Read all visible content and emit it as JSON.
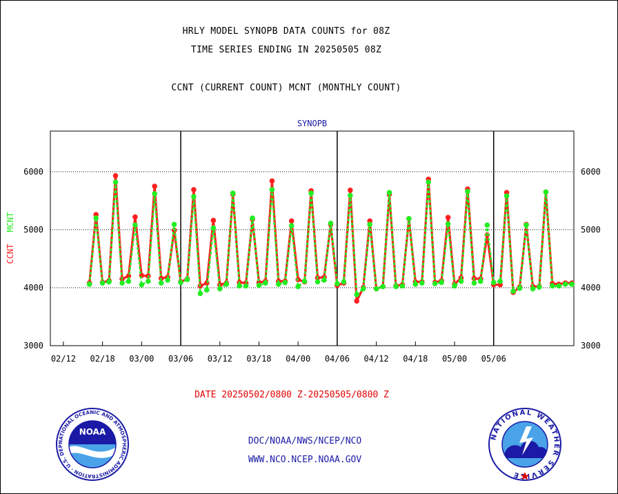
{
  "header": {
    "title_line1": "HRLY MODEL SYNOPB DATA COUNTS for 08Z",
    "title_line2": "TIME SERIES ENDING IN 20250505 08Z",
    "subtitle": "CCNT (CURRENT COUNT) MCNT (MONTHLY COUNT)"
  },
  "chart_data": {
    "type": "line",
    "title": "SYNOPB",
    "ylabel_ccnt": "CCNT",
    "ylabel_mcnt": "MCNT",
    "ylim": [
      3000,
      6700
    ],
    "yticks": [
      "3000",
      "4000",
      "5000",
      "6000"
    ],
    "xtick_labels": [
      "02/12",
      "02/18",
      "03/00",
      "03/06",
      "03/12",
      "03/18",
      "04/00",
      "04/06",
      "04/12",
      "04/18",
      "05/00",
      "05/06"
    ],
    "day_boundaries": [
      "03/00",
      "04/00",
      "05/00"
    ],
    "colors": {
      "ccnt": "#ff1f1f",
      "mcnt": "#22ee22",
      "axis": "#000000",
      "title": "#1a1aa6"
    },
    "x_hours": [
      6,
      7,
      8,
      9,
      10,
      11,
      12,
      13,
      14,
      15,
      16,
      17,
      18,
      19,
      20,
      21,
      22,
      23,
      24,
      25,
      26,
      27,
      28,
      29,
      30,
      31,
      32,
      33,
      34,
      35,
      36,
      37,
      38,
      39,
      40,
      41,
      42,
      43,
      44,
      45,
      46,
      47,
      48,
      49,
      50,
      51,
      52,
      53,
      54,
      55,
      56,
      57,
      58,
      59,
      60,
      61,
      62,
      63,
      64,
      65,
      66,
      67,
      68,
      69,
      70,
      71,
      72,
      73,
      74,
      75,
      76,
      77,
      78,
      79,
      80
    ],
    "series": [
      {
        "name": "CCNT",
        "values": [
          4080,
          5260,
          4090,
          4120,
          5930,
          4150,
          4200,
          5220,
          4210,
          4200,
          5750,
          4160,
          4180,
          4990,
          4100,
          4150,
          5690,
          4030,
          4080,
          5160,
          4050,
          4080,
          5610,
          4090,
          4080,
          5180,
          4090,
          4110,
          5840,
          4110,
          4110,
          5150,
          4140,
          4100,
          5670,
          4170,
          4180,
          5090,
          4040,
          4080,
          5680,
          3770,
          4000,
          5150,
          3980,
          4020,
          5610,
          4030,
          4050,
          5190,
          4100,
          4100,
          5870,
          4090,
          4120,
          5210,
          4060,
          4170,
          5700,
          4160,
          4150,
          4910,
          4050,
          4050,
          5640,
          3920,
          4010,
          5090,
          4020,
          4020,
          5650,
          4070,
          4060,
          4080,
          4080
        ]
      },
      {
        "name": "MCNT",
        "values": [
          4060,
          5200,
          4080,
          4100,
          5820,
          4080,
          4110,
          5080,
          4050,
          4110,
          5620,
          4080,
          4130,
          5090,
          4090,
          4140,
          5570,
          3900,
          3960,
          5030,
          3980,
          4060,
          5630,
          4030,
          4030,
          5200,
          4040,
          4080,
          5690,
          4060,
          4090,
          5070,
          4020,
          4110,
          5630,
          4100,
          4130,
          5110,
          4070,
          4100,
          5590,
          3880,
          3980,
          5090,
          3980,
          4020,
          5640,
          4020,
          4030,
          5190,
          4060,
          4080,
          5820,
          4070,
          4090,
          5100,
          4030,
          4110,
          5660,
          4080,
          4110,
          5080,
          4090,
          4110,
          5580,
          3940,
          3990,
          5080,
          3980,
          4010,
          5650,
          4030,
          4030,
          4060,
          4060
        ]
      }
    ]
  },
  "footer": {
    "date_range": "DATE 20250502/0800 Z-20250505/0800 Z",
    "org_line": "DOC/NOAA/NWS/NCEP/NCO",
    "website": "WWW.NCO.NCEP.NOAA.GOV"
  },
  "logos": {
    "noaa_text": "NOAA",
    "noaa_ring_text": "NATIONAL OCEANIC AND ATMOSPHERIC ADMINISTRATION · U.S. DEPARTMENT OF COMMERCE ·",
    "nws_ring_text": "NATIONAL WEATHER SERVICE"
  }
}
